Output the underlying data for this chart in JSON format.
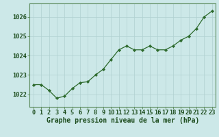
{
  "x": [
    0,
    1,
    2,
    3,
    4,
    5,
    6,
    7,
    8,
    9,
    10,
    11,
    12,
    13,
    14,
    15,
    16,
    17,
    18,
    19,
    20,
    21,
    22,
    23
  ],
  "y": [
    1022.5,
    1022.5,
    1022.2,
    1021.8,
    1021.9,
    1022.3,
    1022.6,
    1022.65,
    1023.0,
    1023.3,
    1023.8,
    1024.3,
    1024.5,
    1024.3,
    1024.3,
    1024.5,
    1024.3,
    1024.3,
    1024.5,
    1024.8,
    1025.0,
    1025.4,
    1026.0,
    1026.3
  ],
  "line_color": "#2d6a2d",
  "marker": "D",
  "marker_size": 2.2,
  "bg_color": "#cce8e8",
  "grid_color": "#b0d0d0",
  "ylabel_ticks": [
    1022,
    1023,
    1024,
    1025,
    1026
  ],
  "xlabel": "Graphe pression niveau de la mer (hPa)",
  "ylim": [
    1021.35,
    1026.7
  ],
  "xlim": [
    -0.5,
    23.5
  ],
  "text_color": "#1a4a1a",
  "xlabel_fontsize": 7.0,
  "tick_fontsize": 6.2,
  "spine_color": "#5a8a5a"
}
